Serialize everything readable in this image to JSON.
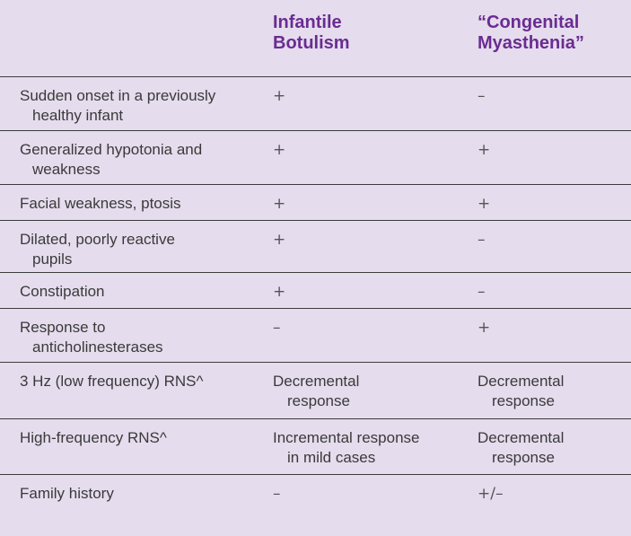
{
  "table": {
    "header": {
      "col0": "",
      "col1_line1": "Infantile",
      "col1_line2": "Botulism",
      "col2_line1": "“Congenital",
      "col2_line2": "Myasthenia”"
    },
    "rows": [
      {
        "label_line1": "Sudden onset in a previously",
        "label_line2": "healthy infant",
        "botulism": "+",
        "myasthenia": "–"
      },
      {
        "label_line1": "Generalized hypotonia and",
        "label_line2": "weakness",
        "botulism": "+",
        "myasthenia": "+"
      },
      {
        "label_line1": "Facial weakness, ptosis",
        "label_line2": "",
        "botulism": "+",
        "myasthenia": "+"
      },
      {
        "label_line1": "Dilated, poorly reactive",
        "label_line2": "pupils",
        "botulism": "+",
        "myasthenia": "–"
      },
      {
        "label_line1": "Constipation",
        "label_line2": "",
        "botulism": "+",
        "myasthenia": "–"
      },
      {
        "label_line1": "Response to",
        "label_line2": "anticholinesterases",
        "botulism": "–",
        "myasthenia": "+"
      },
      {
        "label_line1": "3 Hz (low frequency) RNS^",
        "label_line2": "",
        "botulism_line1": "Decremental",
        "botulism_line2": "response",
        "myasthenia_line1": "Decremental",
        "myasthenia_line2": "response"
      },
      {
        "label_line1": "High-frequency RNS^",
        "label_line2": "",
        "botulism_line1": "Incremental response",
        "botulism_line2": "in mild cases",
        "myasthenia_line1": "Decremental",
        "myasthenia_line2": "response"
      },
      {
        "label_line1": "Family history",
        "label_line2": "",
        "botulism": "–",
        "myasthenia": "+/–"
      }
    ]
  }
}
